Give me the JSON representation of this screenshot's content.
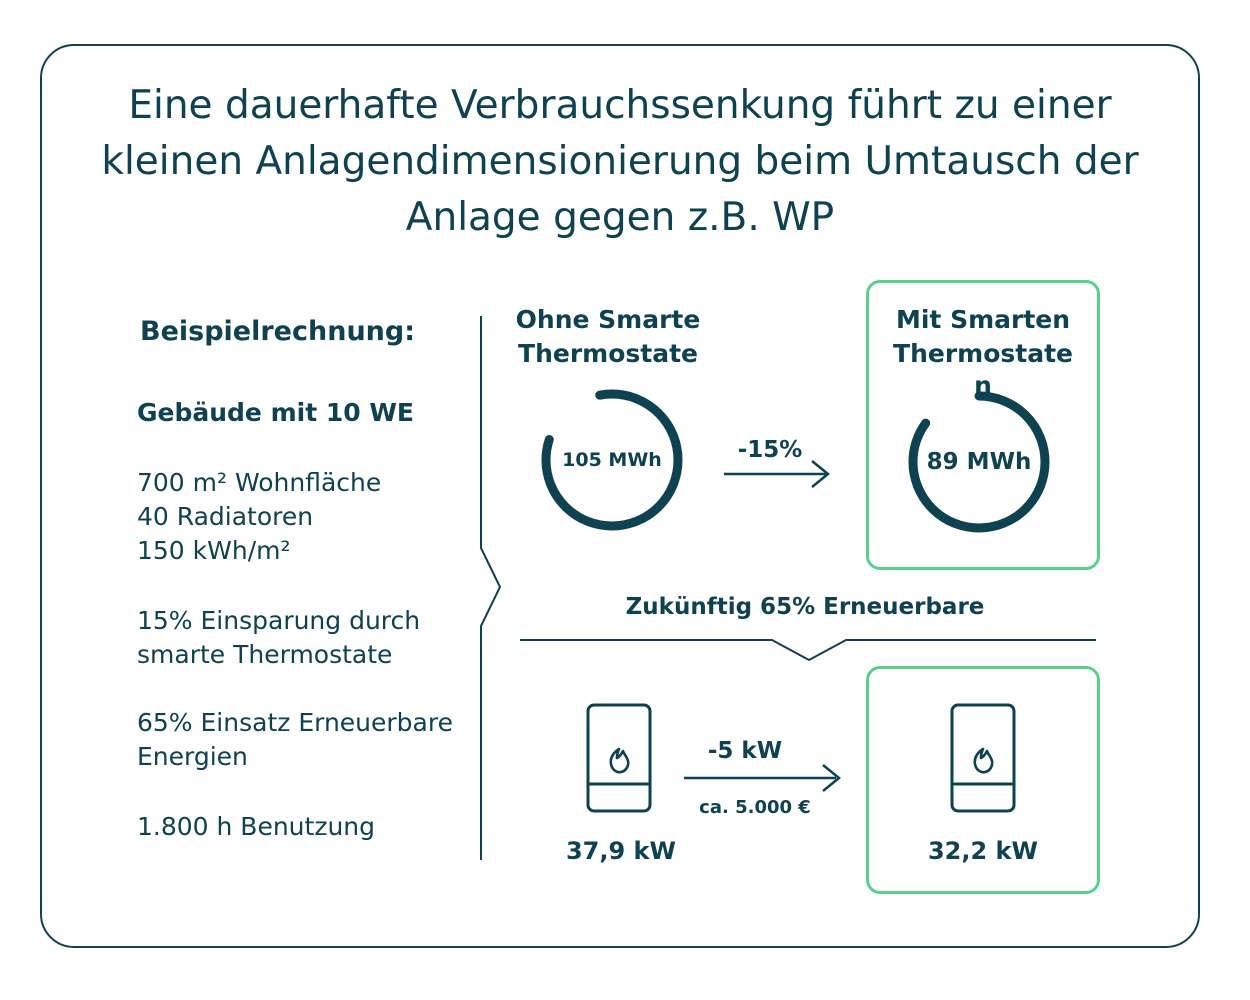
{
  "title": "Eine dauerhafte Verbrauchssenkung führt zu einer kleinen Anlagendimensionierung beim Umtausch der Anlage gegen z.B. WP",
  "left": {
    "heading": "Beispielrechnung:",
    "building": "Gebäude mit 10 WE",
    "area": "700 m² Wohnfläche",
    "radiators": "40 Radiatoren",
    "demand": "150 kWh/m²",
    "saving_line1": "15% Einsparung durch",
    "saving_line2": "smarte Thermostate",
    "renewable_line1": "65% Einsatz Erneuerbare",
    "renewable_line2": "Energien",
    "usage": "1.800 h Benutzung"
  },
  "without": {
    "heading_line1": "Ohne Smarte",
    "heading_line2": "Thermostate",
    "value": "105 MWh",
    "ring_fraction": 1.0
  },
  "with": {
    "heading_line1": "Mit Smarten",
    "heading_line2": "Thermostate",
    "heading_line3": "n",
    "value": "89 MWh",
    "ring_fraction": 0.85
  },
  "reduction": {
    "label": "-15%"
  },
  "future": {
    "label": "Zukünftig 65% Erneuerbare"
  },
  "heater_before": {
    "value": "37,9 kW",
    "icon": "flame-icon"
  },
  "heater_after": {
    "value": "32,2 kW",
    "icon": "flame-icon"
  },
  "power_reduction": {
    "label": "-5 kW",
    "cost": "ca. 5.000 €"
  },
  "colors": {
    "dark": "#0f4250",
    "accent": "#58d18e"
  }
}
